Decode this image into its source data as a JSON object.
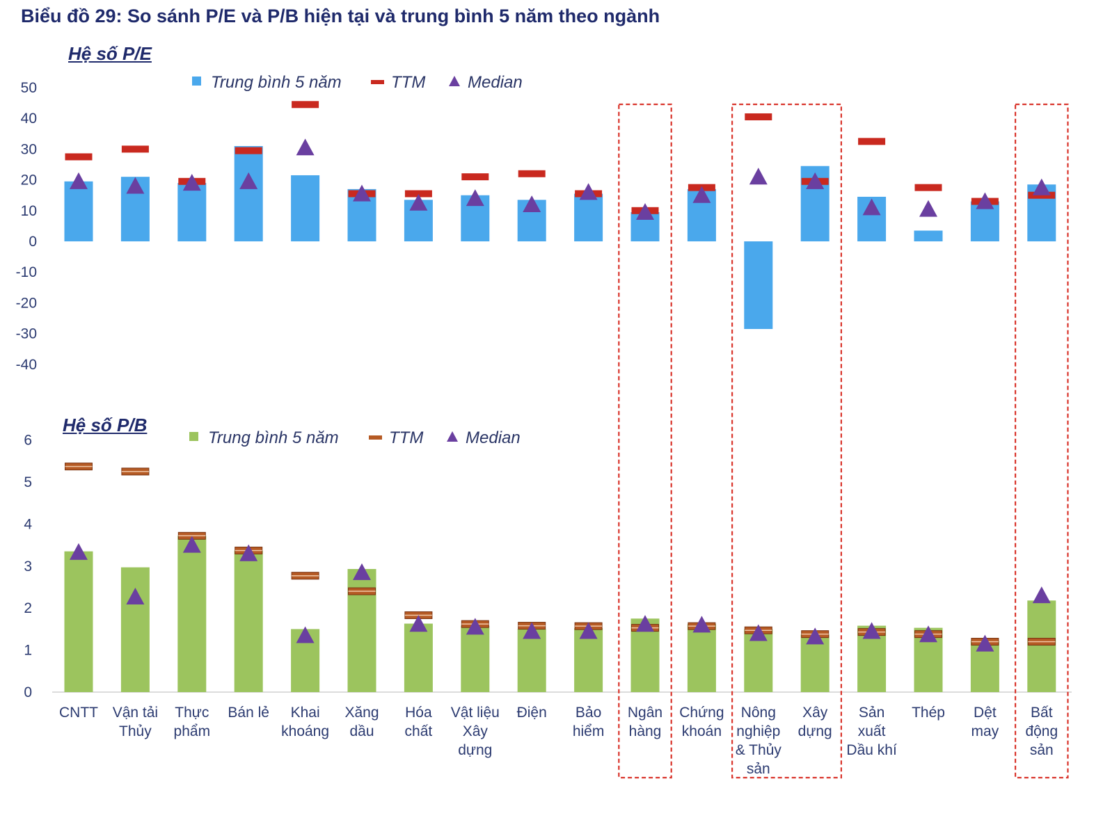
{
  "title": "Biểu đồ 29: So sánh P/E và P/B hiện tại và trung bình 5 năm theo ngành",
  "chart_data": [
    {
      "type": "bar",
      "title": "Hệ số P/E",
      "legend": [
        "Trung bình 5 năm",
        "TTM",
        "Median"
      ],
      "ylim": [
        -40,
        50
      ],
      "yticks": [
        "50",
        "40",
        "30",
        "20",
        "10",
        "0",
        "-10",
        "-20",
        "-30",
        "-40"
      ],
      "colors": {
        "bar": "#4aa8ec",
        "ttm": "#c9291f",
        "median": "#6a3fa0"
      },
      "series": [
        {
          "name": "Trung bình 5 năm",
          "values": [
            19.5,
            21,
            19,
            31,
            21.5,
            17,
            13.5,
            15,
            13.5,
            15.5,
            9.5,
            17,
            -28.5,
            24.5,
            14.5,
            3.5,
            13,
            18.5
          ]
        },
        {
          "name": "TTM",
          "values": [
            27.5,
            30,
            19.5,
            29.5,
            44.5,
            15.5,
            15.5,
            21,
            22,
            15.5,
            10,
            17.5,
            40.5,
            19.5,
            32.5,
            17.5,
            13,
            15
          ]
        },
        {
          "name": "Median",
          "values": [
            19.5,
            18,
            19,
            19.5,
            30.5,
            15.5,
            12.5,
            14,
            12,
            16,
            9.5,
            15,
            21,
            19.5,
            11,
            10.5,
            13,
            17.5
          ]
        }
      ]
    },
    {
      "type": "bar",
      "title": "Hệ số P/B",
      "legend": [
        "Trung bình 5 năm",
        "TTM",
        "Median"
      ],
      "ylim": [
        0,
        6
      ],
      "yticks": [
        "6",
        "5",
        "4",
        "3",
        "2",
        "1",
        "0"
      ],
      "colors": {
        "bar": "#9cc45e",
        "ttm": "#b55a24",
        "median": "#6a3fa0"
      },
      "series": [
        {
          "name": "Trung bình 5 năm",
          "values": [
            3.35,
            2.97,
            3.72,
            3.37,
            1.5,
            2.93,
            1.63,
            1.58,
            1.5,
            1.52,
            1.75,
            1.62,
            1.5,
            1.37,
            1.58,
            1.53,
            1.22,
            2.18
          ]
        },
        {
          "name": "TTM",
          "values": [
            5.37,
            5.25,
            3.72,
            3.37,
            2.77,
            2.4,
            1.83,
            1.62,
            1.58,
            1.57,
            1.53,
            1.57,
            1.47,
            1.38,
            1.43,
            1.38,
            1.2,
            1.2
          ]
        },
        {
          "name": "Median",
          "values": [
            3.33,
            2.27,
            3.5,
            3.3,
            1.35,
            2.85,
            1.62,
            1.55,
            1.45,
            1.45,
            1.62,
            1.6,
            1.4,
            1.32,
            1.45,
            1.37,
            1.15,
            2.3
          ]
        }
      ]
    }
  ],
  "categories": [
    "CNTT",
    "Vận tải Thủy",
    "Thực phẩm",
    "Bán lẻ",
    "Khai khoáng",
    "Xăng dầu",
    "Hóa chất",
    "Vật liệu Xây dựng",
    "Điện",
    "Bảo hiểm",
    "Ngân hàng",
    "Chứng khoán",
    "Nông nghiệp & Thủy sản",
    "Xây dựng",
    "Sản xuất Dầu khí",
    "Thép",
    "Dệt may",
    "Bất động sản"
  ],
  "category_lines": [
    [
      "CNTT"
    ],
    [
      "Vận tải",
      "Thủy"
    ],
    [
      "Thực",
      "phẩm"
    ],
    [
      "Bán lẻ"
    ],
    [
      "Khai",
      "khoáng"
    ],
    [
      "Xăng",
      "dầu"
    ],
    [
      "Hóa",
      "chất"
    ],
    [
      "Vật liệu",
      "Xây",
      "dựng"
    ],
    [
      "Điện"
    ],
    [
      "Bảo",
      "hiểm"
    ],
    [
      "Ngân",
      "hàng"
    ],
    [
      "Chứng",
      "khoán"
    ],
    [
      "Nông",
      "nghiệp",
      "& Thủy",
      "sản"
    ],
    [
      "Xây",
      "dựng"
    ],
    [
      "Sản",
      "xuất",
      "Dầu khí"
    ],
    [
      "Thép"
    ],
    [
      "Dệt",
      "may"
    ],
    [
      "Bất",
      "động",
      "sản"
    ]
  ],
  "highlight_groups": [
    [
      10
    ],
    [
      12,
      13
    ],
    [
      17
    ]
  ],
  "highlight_color": "#d9342b"
}
